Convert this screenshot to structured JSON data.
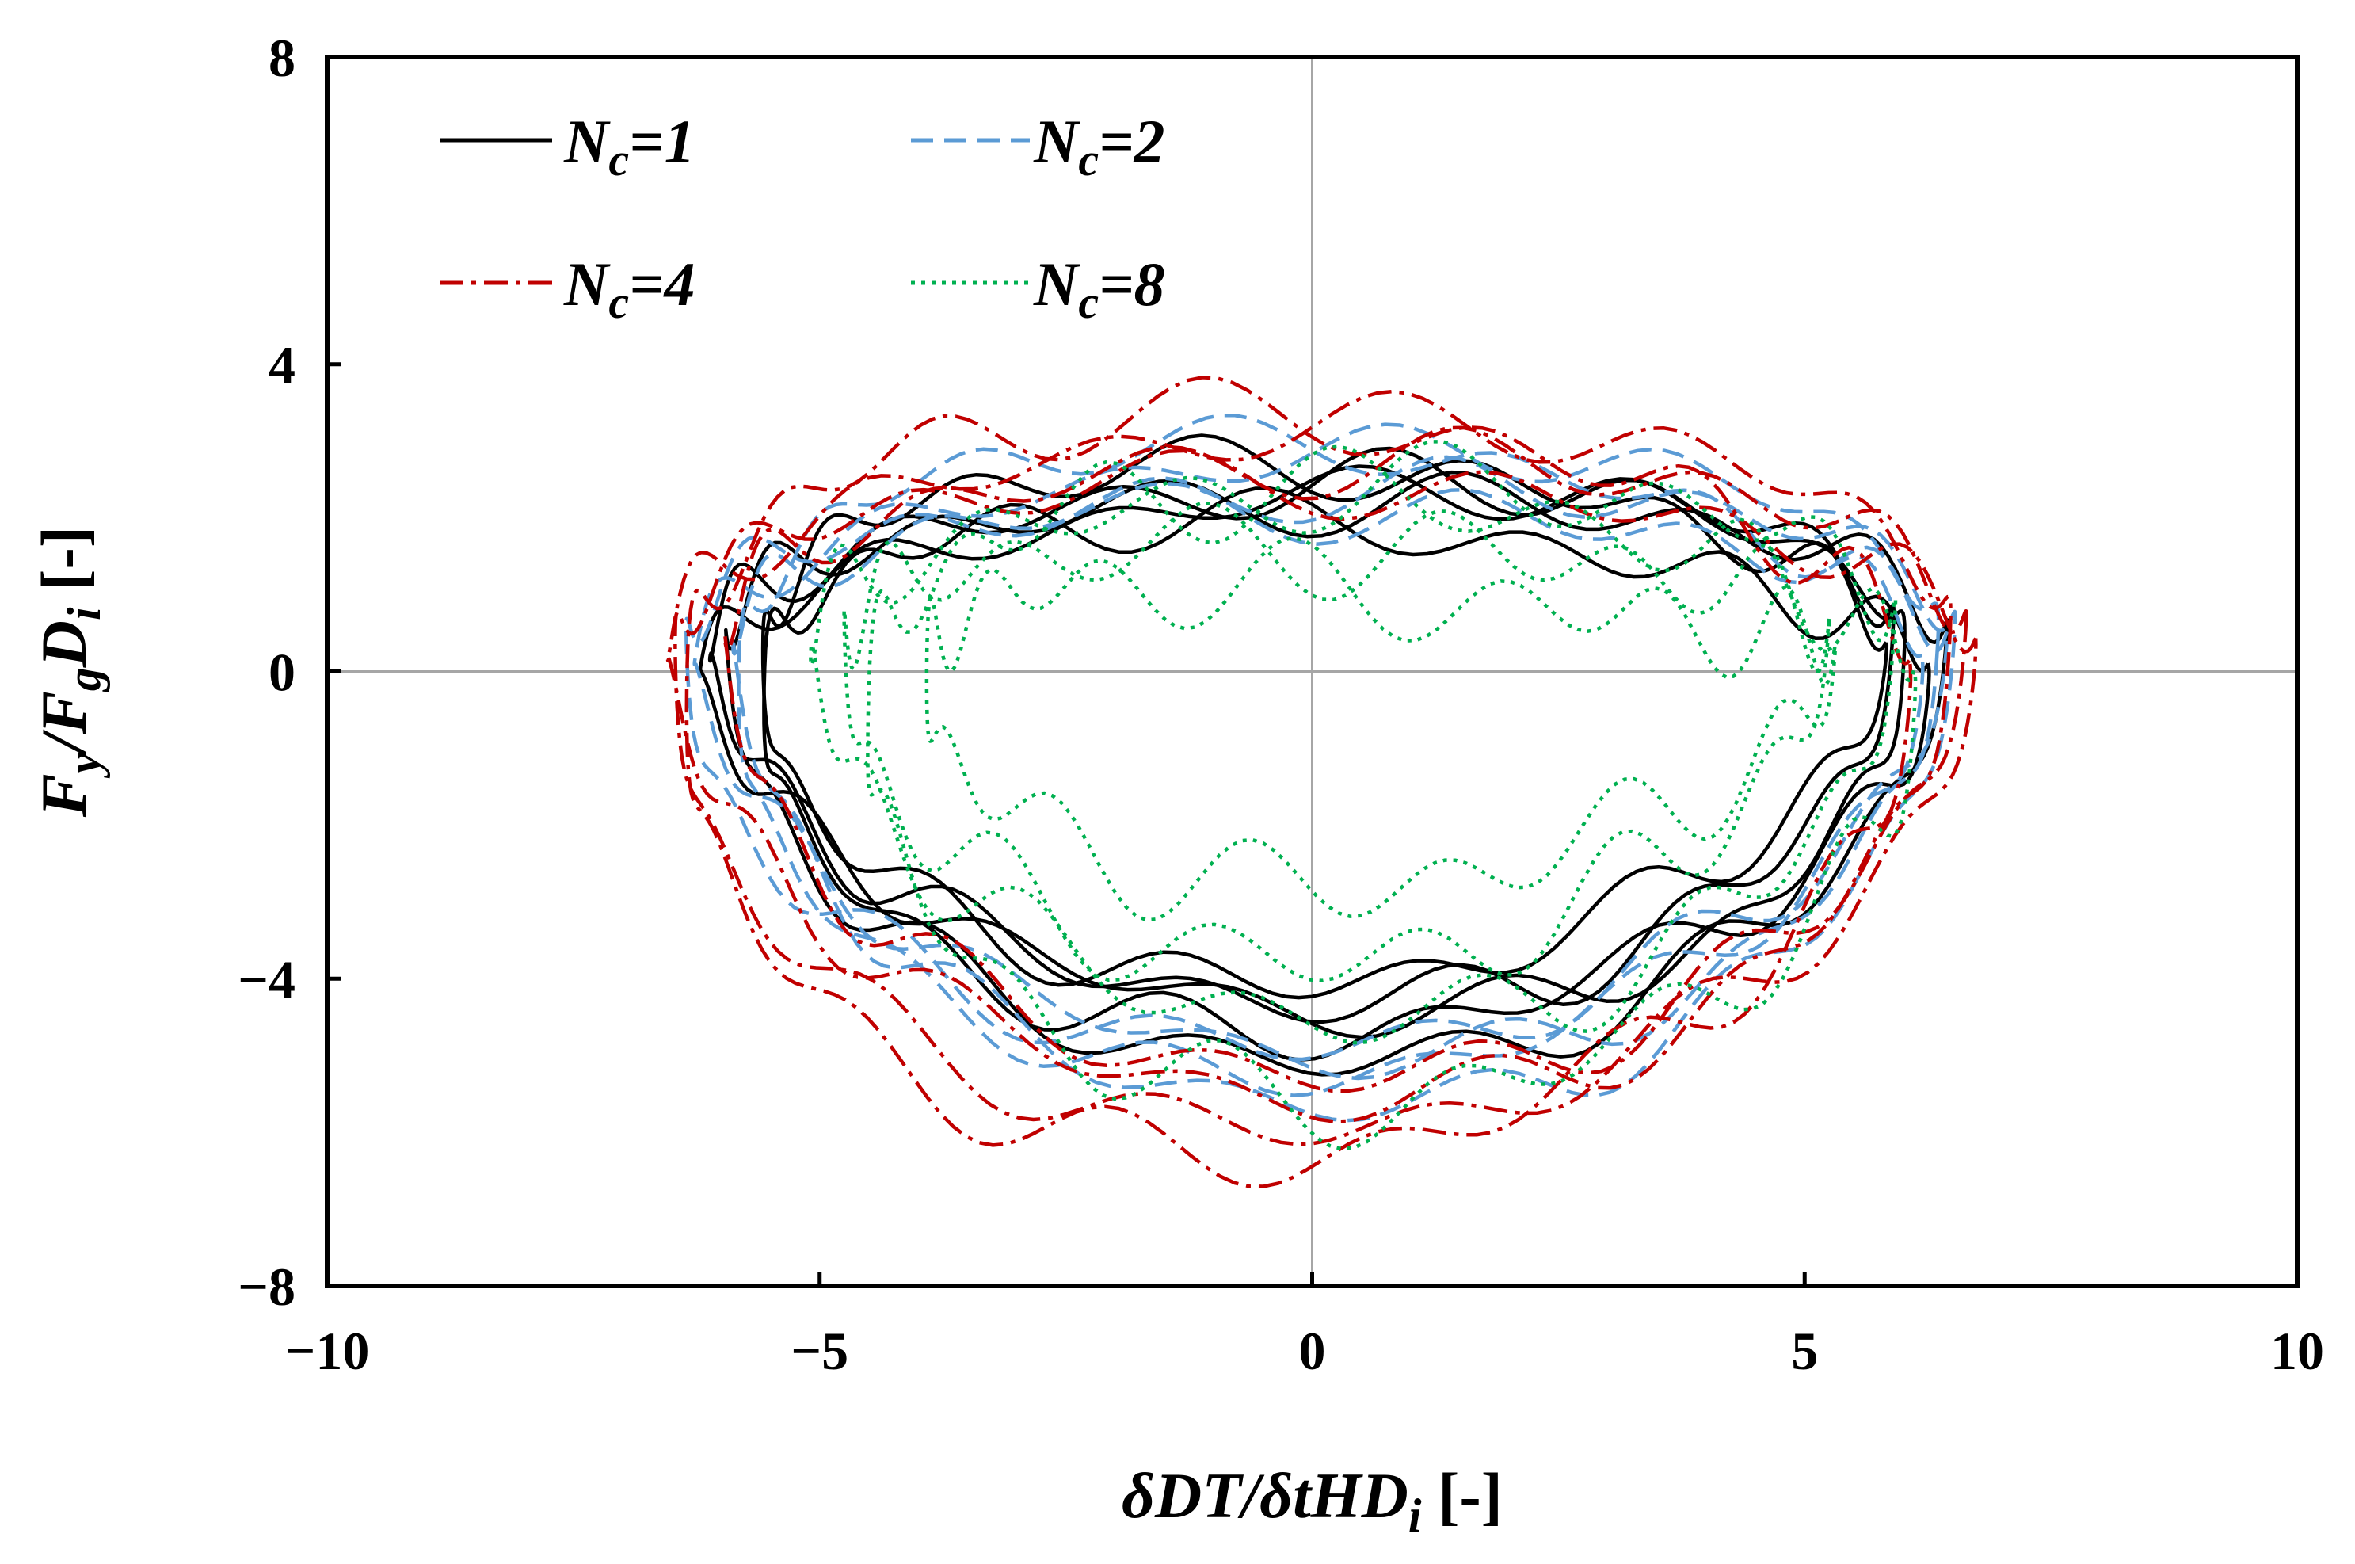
{
  "chart_data": {
    "type": "line",
    "title": "",
    "xlabel": "δDT/δtHD_i [-]",
    "ylabel": "F_y/F_gD_i [-]",
    "xlim": [
      -10,
      10
    ],
    "ylim": [
      -8,
      8
    ],
    "xticks": [
      "−10",
      "−5",
      "0",
      "5",
      "10"
    ],
    "yticks": [
      "8",
      "4",
      "0",
      "−4",
      "−8"
    ],
    "xtick_values": [
      -10,
      -5,
      0,
      5,
      10
    ],
    "ytick_values": [
      8,
      4,
      0,
      -4,
      -8
    ],
    "grid": "zero lines only",
    "legend_position": "top-left",
    "series": [
      {
        "name": "N_c=1",
        "legend_label": "N",
        "legend_sub": "c",
        "legend_suffix": "=1",
        "color": "#000000",
        "dash": "solid",
        "loops": [
          {
            "rx": 6.1,
            "cx": -0.1,
            "top": 2.3,
            "bot": -4.4,
            "phase": 0.0,
            "wob": 0.25
          },
          {
            "rx": 6.0,
            "cx": -0.2,
            "top": 2.6,
            "bot": -4.1,
            "phase": 0.7,
            "wob": 0.3
          },
          {
            "rx": 6.2,
            "cx": 0.1,
            "top": 2.5,
            "bot": -4.8,
            "phase": 1.4,
            "wob": 0.3
          },
          {
            "rx": 5.7,
            "cx": 0.0,
            "top": 2.9,
            "bot": -3.8,
            "phase": 2.1,
            "wob": 0.28
          },
          {
            "rx": 5.9,
            "cx": 0.3,
            "top": 2.0,
            "bot": -4.6,
            "phase": 2.8,
            "wob": 0.3
          }
        ]
      },
      {
        "name": "N_c=2",
        "legend_label": "N",
        "legend_sub": "c",
        "legend_suffix": "=2",
        "color": "#5b9bd5",
        "dash": "28,14",
        "loops": [
          {
            "rx": 6.3,
            "cx": 0.0,
            "top": 2.9,
            "bot": -4.9,
            "phase": 0.3,
            "wob": 0.25
          },
          {
            "rx": 6.2,
            "cx": 0.2,
            "top": 2.6,
            "bot": -5.4,
            "phase": 1.0,
            "wob": 0.28
          },
          {
            "rx": 6.4,
            "cx": -0.1,
            "top": 2.4,
            "bot": -4.6,
            "phase": 1.8,
            "wob": 0.3
          },
          {
            "rx": 6.0,
            "cx": 0.1,
            "top": 3.1,
            "bot": -5.1,
            "phase": 2.5,
            "wob": 0.25
          }
        ]
      },
      {
        "name": "N_c=4",
        "legend_label": "N",
        "legend_sub": "c",
        "legend_suffix": "=4",
        "color": "#c00000",
        "dash": "30,10,6,10",
        "loops": [
          {
            "rx": 6.5,
            "cx": -0.1,
            "top": 3.3,
            "bot": -5.4,
            "phase": 0.5,
            "wob": 0.3
          },
          {
            "rx": 6.3,
            "cx": 0.2,
            "top": 3.0,
            "bot": -5.0,
            "phase": 1.2,
            "wob": 0.32
          },
          {
            "rx": 6.6,
            "cx": 0.0,
            "top": 2.7,
            "bot": -5.7,
            "phase": 2.0,
            "wob": 0.3
          },
          {
            "rx": 6.2,
            "cx": -0.2,
            "top": 3.4,
            "bot": -6.2,
            "phase": 2.7,
            "wob": 0.35
          }
        ]
      },
      {
        "name": "N_c=8",
        "legend_label": "N",
        "legend_sub": "c",
        "legend_suffix": "=8",
        "color": "#00b050",
        "dash": "5,8",
        "loops": [
          {
            "rx": 5.5,
            "cx": 0.3,
            "top": 2.6,
            "bot": -4.3,
            "phase": 0.9,
            "wob": 0.4
          },
          {
            "rx": 5.0,
            "cx": 0.1,
            "top": 1.9,
            "bot": -3.5,
            "phase": 1.7,
            "wob": 0.45
          },
          {
            "rx": 4.6,
            "cx": 0.6,
            "top": 1.2,
            "bot": -2.6,
            "phase": 2.4,
            "wob": 0.45
          },
          {
            "rx": 5.3,
            "cx": 0.8,
            "top": 2.3,
            "bot": -5.6,
            "phase": 3.1,
            "wob": 0.45
          }
        ]
      }
    ]
  }
}
